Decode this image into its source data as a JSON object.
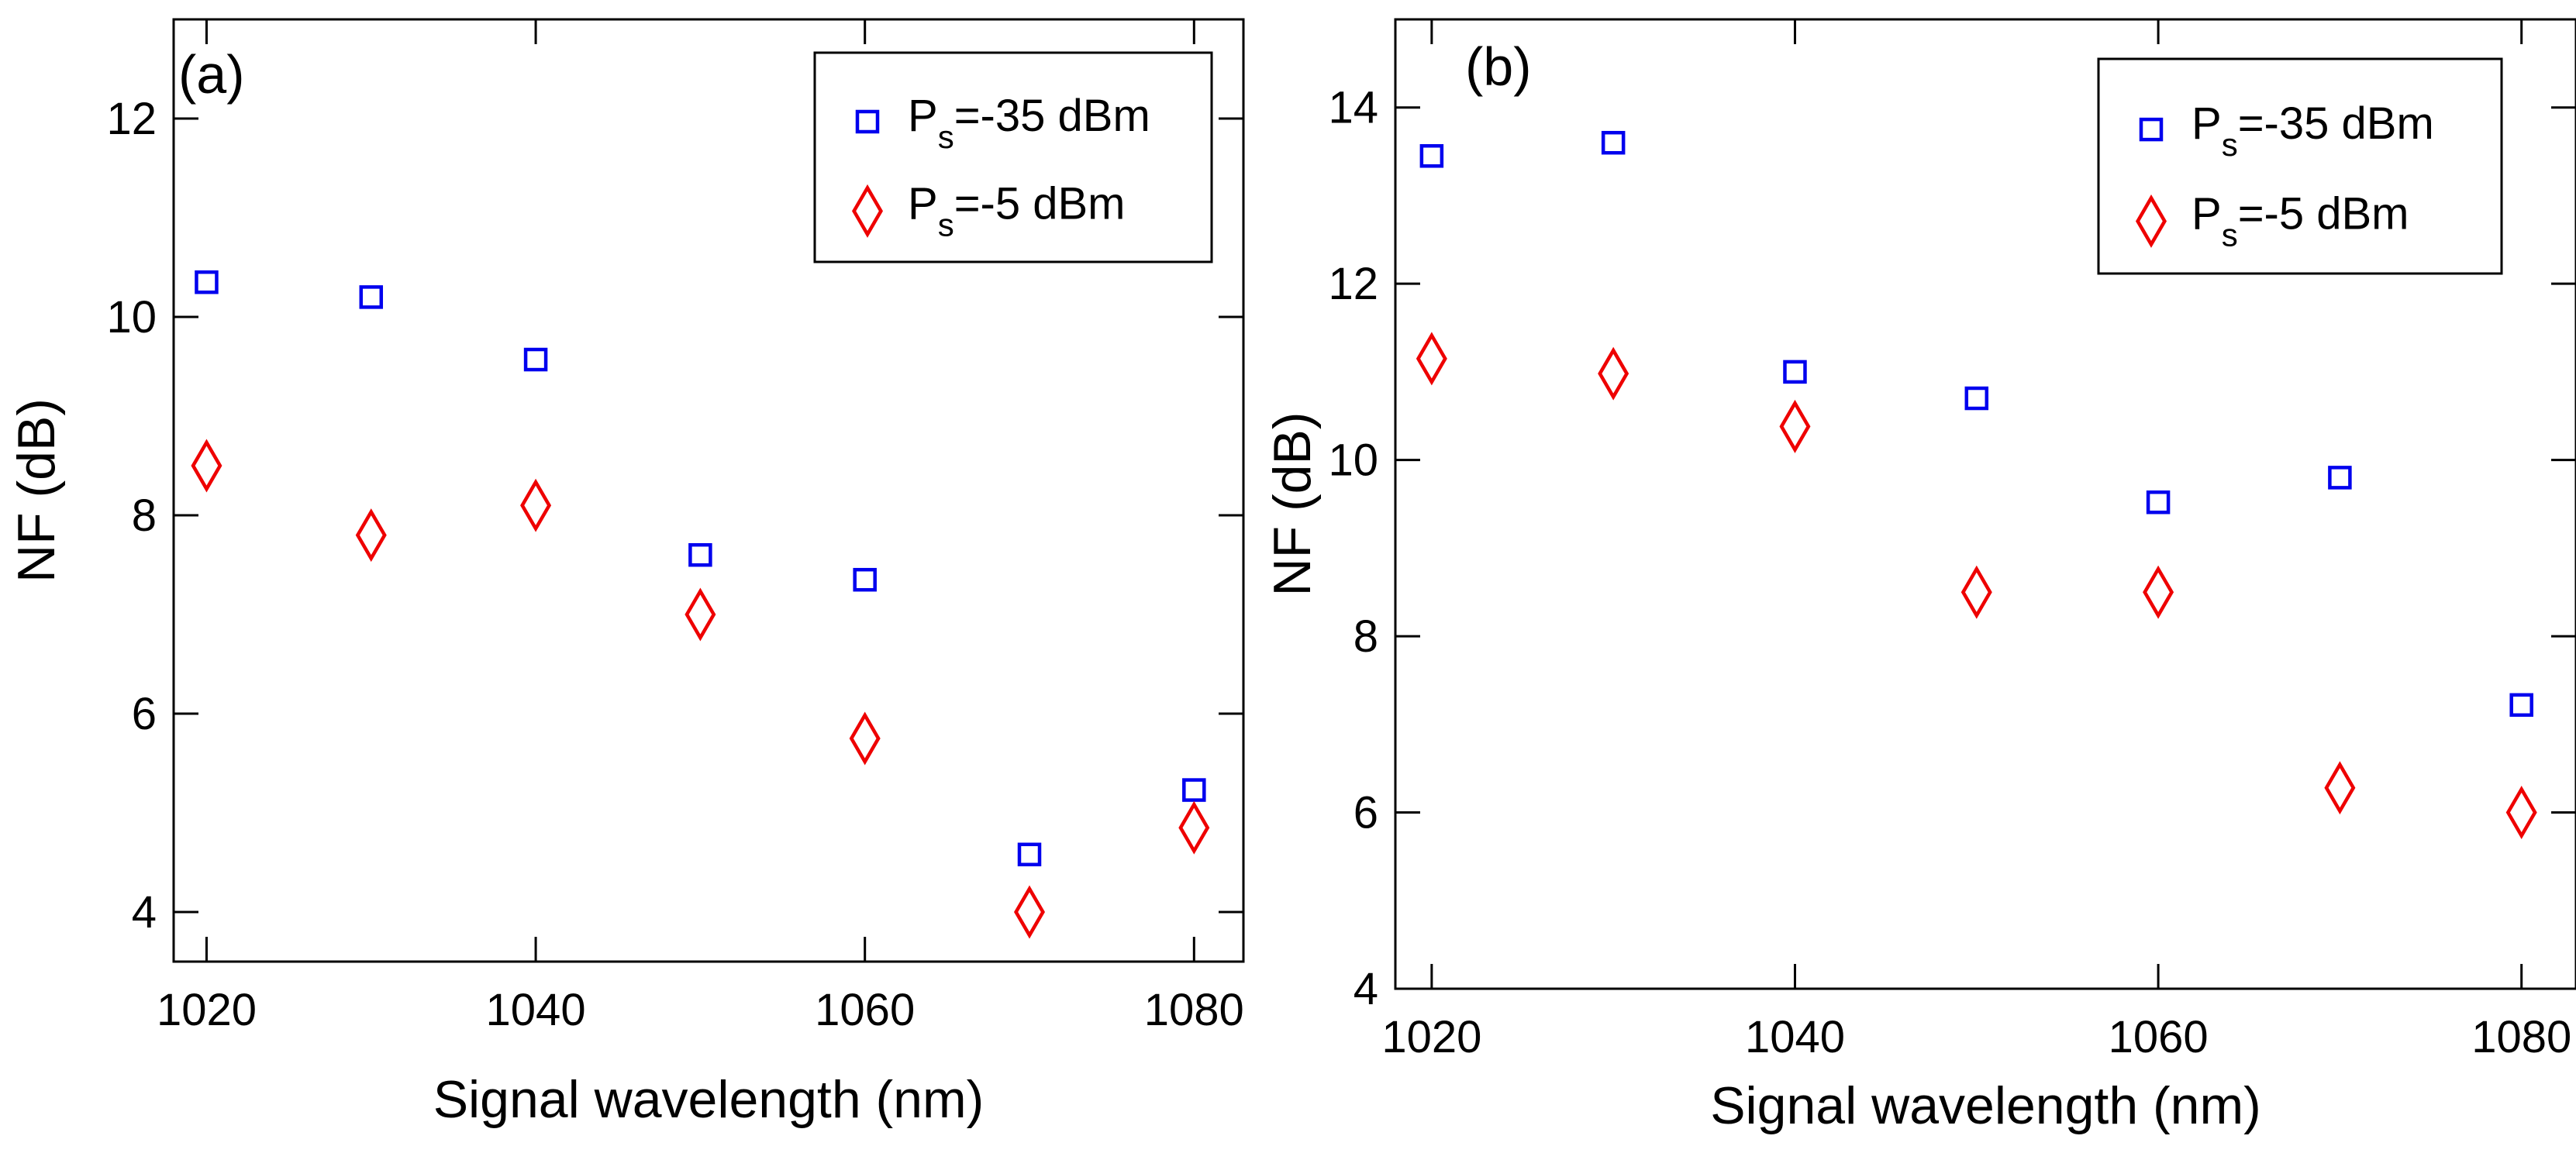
{
  "chart_data": [
    {
      "type": "scatter",
      "panel_label": "(a)",
      "xlabel": "Signal wavelength (nm)",
      "ylabel": "NF (dB)",
      "xlim": [
        1018,
        1083
      ],
      "ylim": [
        3.5,
        13
      ],
      "xticks": [
        1020,
        1040,
        1060,
        1080
      ],
      "yticks": [
        4,
        6,
        8,
        10,
        12
      ],
      "legend_position": "top-right",
      "series": [
        {
          "name": "P_s=-35 dBm",
          "legend_main": "P",
          "legend_sub": "s",
          "legend_rest": "=-35 dBm",
          "marker": "square",
          "color": "#0000ee",
          "x": [
            1020,
            1030,
            1040,
            1050,
            1060,
            1070,
            1080
          ],
          "y": [
            10.35,
            10.2,
            9.57,
            7.6,
            7.35,
            4.58,
            5.23
          ]
        },
        {
          "name": "P_s=-5 dBm",
          "legend_main": "P",
          "legend_sub": "s",
          "legend_rest": "=-5 dBm",
          "marker": "diamond",
          "color": "#ee0000",
          "x": [
            1020,
            1030,
            1040,
            1050,
            1060,
            1070,
            1080
          ],
          "y": [
            8.5,
            7.8,
            8.1,
            7.0,
            5.75,
            4.0,
            4.85
          ]
        }
      ]
    },
    {
      "type": "scatter",
      "panel_label": "(b)",
      "xlabel": "Signal wavelength (nm)",
      "ylabel": "NF (dB)",
      "xlim": [
        1018,
        1083
      ],
      "ylim": [
        4,
        15
      ],
      "xticks": [
        1020,
        1040,
        1060,
        1080
      ],
      "yticks": [
        4,
        6,
        8,
        10,
        12,
        14
      ],
      "legend_position": "top-right",
      "series": [
        {
          "name": "P_s=-35 dBm",
          "legend_main": "P",
          "legend_sub": "s",
          "legend_rest": "=-35 dBm",
          "marker": "square",
          "color": "#0000ee",
          "x": [
            1020,
            1030,
            1040,
            1050,
            1060,
            1070,
            1080
          ],
          "y": [
            13.45,
            13.6,
            11.0,
            10.7,
            9.52,
            9.8,
            7.22
          ]
        },
        {
          "name": "P_s=-5 dBm",
          "legend_main": "P",
          "legend_sub": "s",
          "legend_rest": "=-5 dBm",
          "marker": "diamond",
          "color": "#ee0000",
          "x": [
            1020,
            1030,
            1040,
            1050,
            1060,
            1070,
            1080
          ],
          "y": [
            11.15,
            10.98,
            10.38,
            8.5,
            8.5,
            6.28,
            6.0
          ]
        }
      ]
    }
  ]
}
